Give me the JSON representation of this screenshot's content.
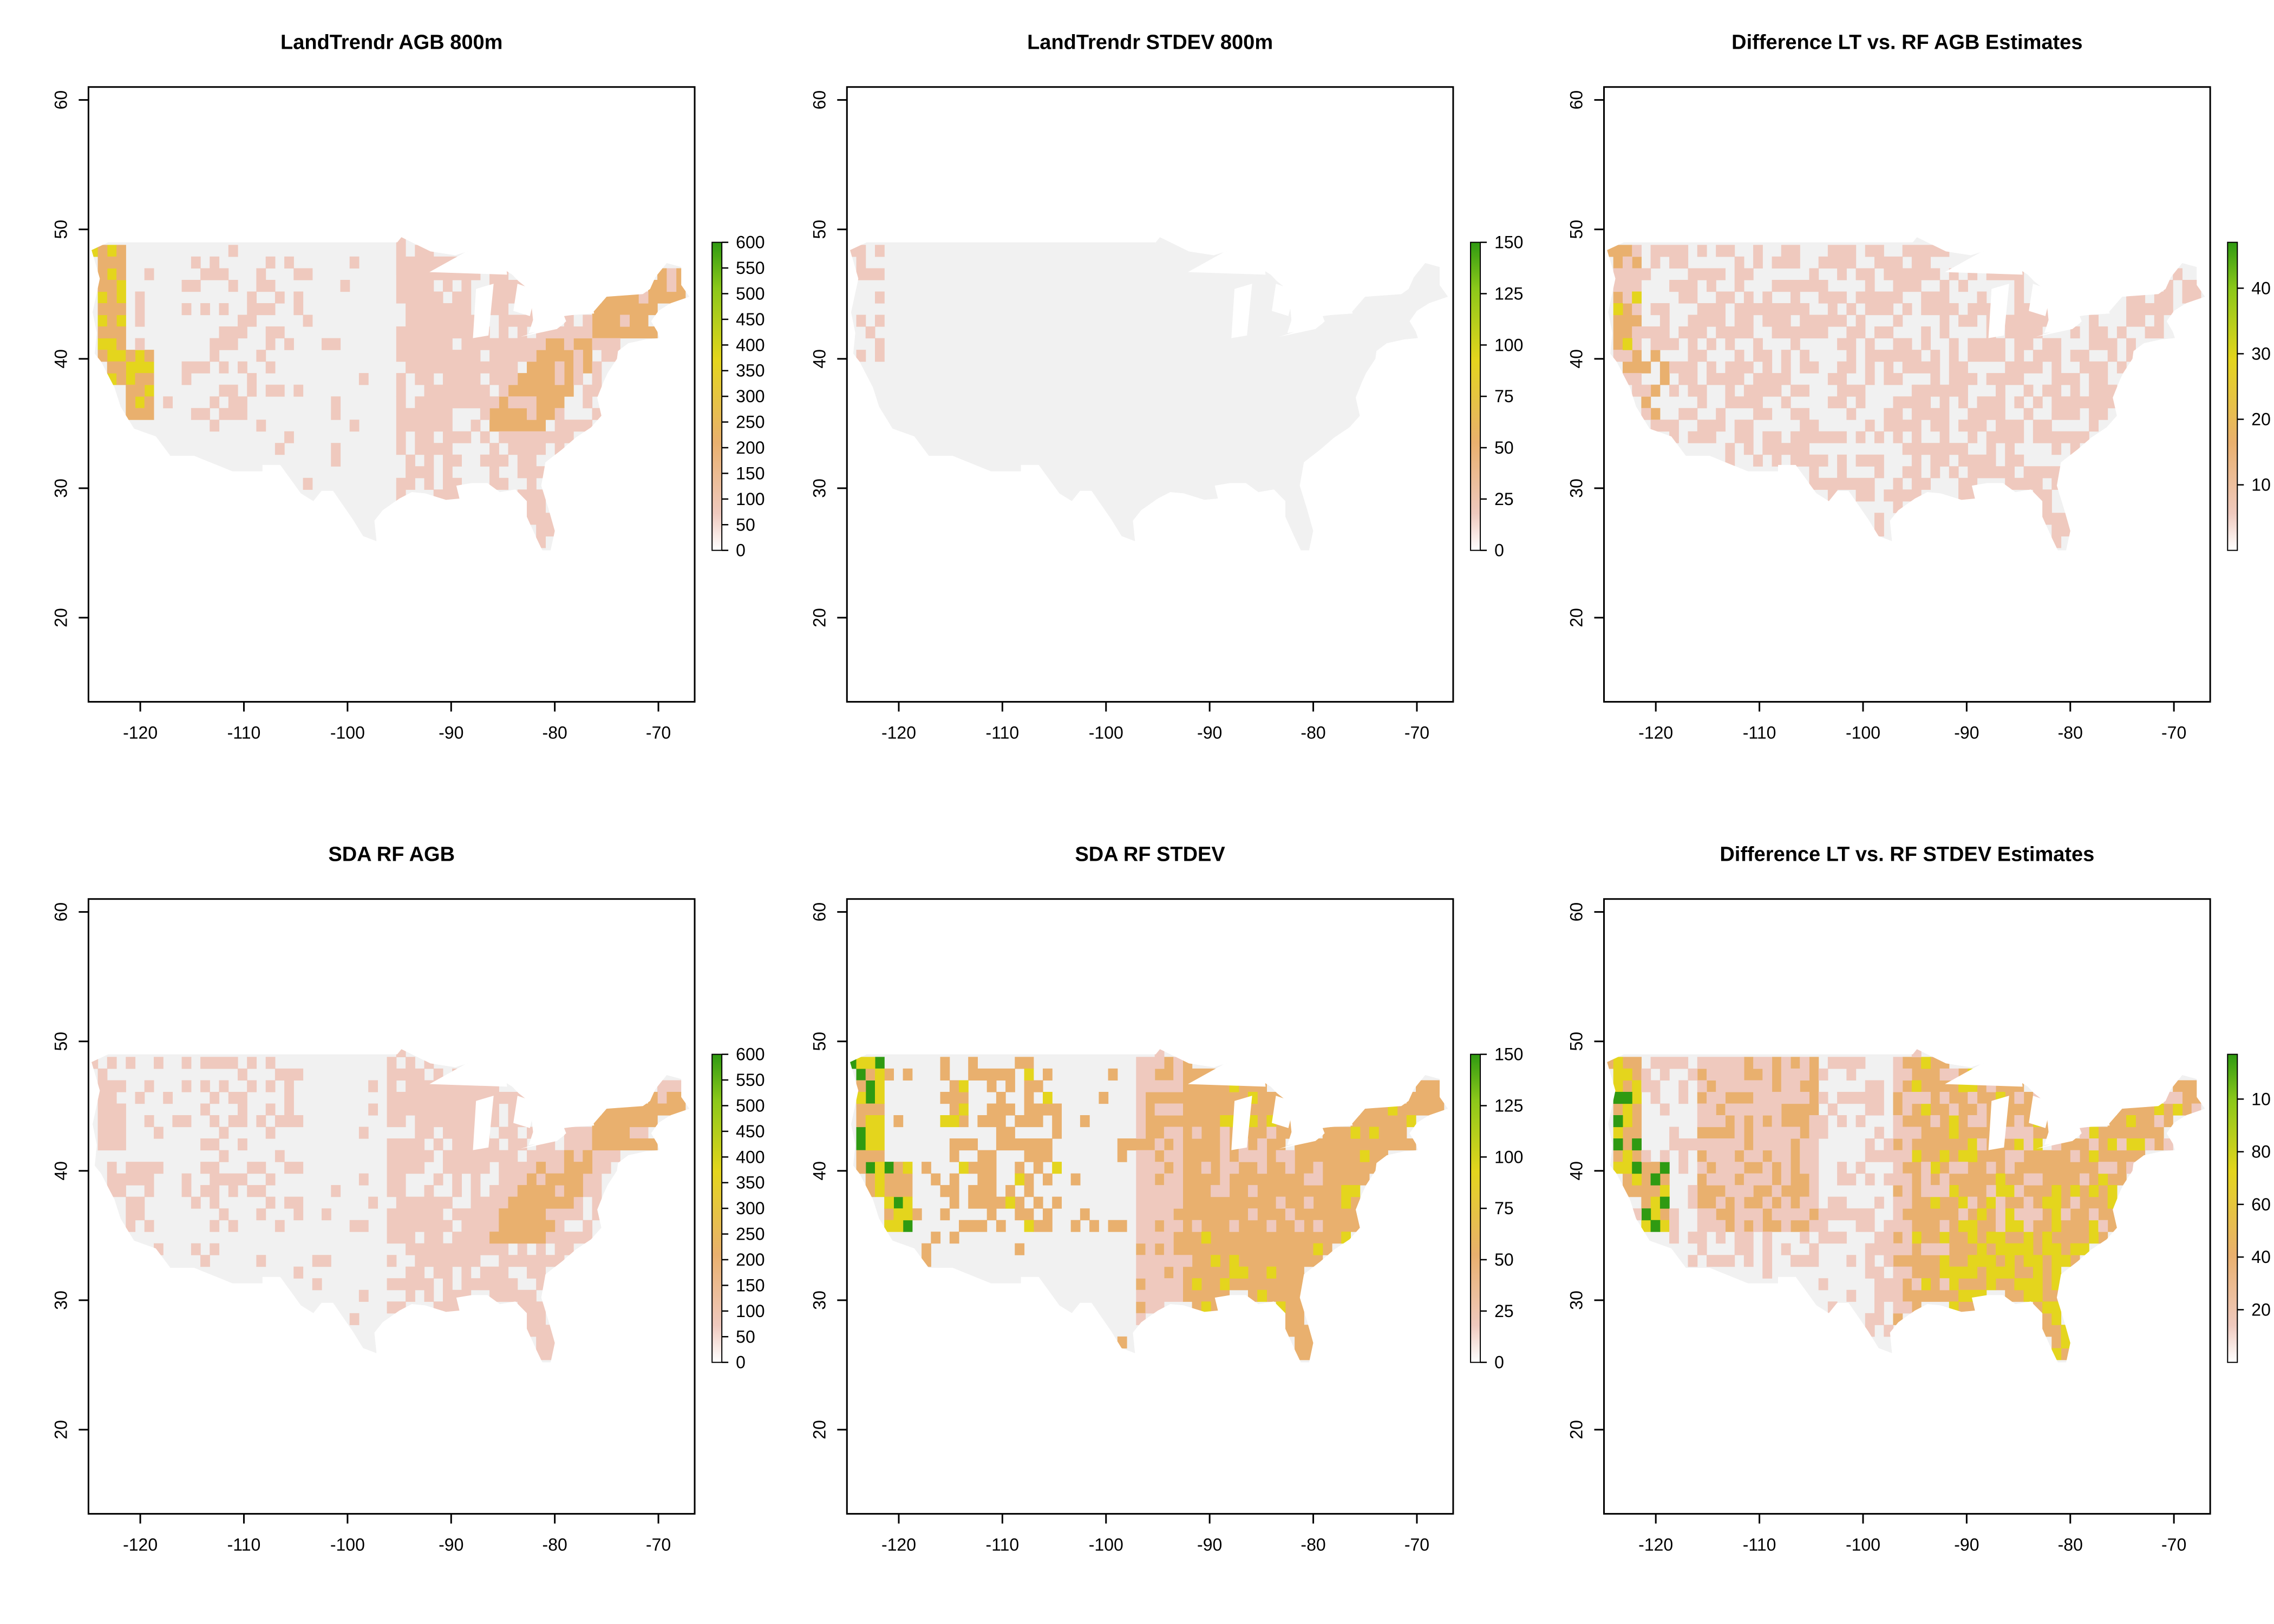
{
  "figure": {
    "panels": [
      {
        "title": "LandTrendr AGB 800m",
        "style": "agb_lt",
        "legend": {
          "ticks": [
            "0",
            "50",
            "100",
            "150",
            "200",
            "250",
            "300",
            "350",
            "400",
            "450",
            "500",
            "550",
            "600"
          ],
          "max": 600
        }
      },
      {
        "title": "LandTrendr STDEV 800m",
        "style": "std_lt",
        "legend": {
          "ticks": [
            "0",
            "25",
            "50",
            "75",
            "100",
            "125",
            "150"
          ],
          "max": 150
        }
      },
      {
        "title": "Difference LT vs. RF AGB Estimates",
        "style": "diff_agb",
        "legend": {
          "ticks": [
            "10",
            "20",
            "30",
            "40"
          ],
          "max": 47
        }
      },
      {
        "title": "SDA RF AGB",
        "style": "agb_rf",
        "legend": {
          "ticks": [
            "0",
            "50",
            "100",
            "150",
            "200",
            "250",
            "300",
            "350",
            "400",
            "450",
            "500",
            "550",
            "600"
          ],
          "max": 600
        }
      },
      {
        "title": "SDA RF STDEV",
        "style": "std_rf",
        "legend": {
          "ticks": [
            "0",
            "25",
            "50",
            "75",
            "100",
            "125",
            "150"
          ],
          "max": 150
        }
      },
      {
        "title": "Difference LT vs. RF STDEV Estimates",
        "style": "diff_std",
        "legend": {
          "ticks": [
            "20",
            "40",
            "60",
            "80",
            "10"
          ],
          "max": 117
        }
      }
    ],
    "axes": {
      "x_ticks": [
        "-120",
        "-110",
        "-100",
        "-90",
        "-80",
        "-70"
      ],
      "x_values": [
        -120,
        -110,
        -100,
        -90,
        -80,
        -70
      ],
      "y_ticks": [
        "20",
        "30",
        "40",
        "50",
        "60"
      ],
      "y_values": [
        20,
        30,
        40,
        50,
        60
      ],
      "xlim": [
        -125,
        -66.5
      ],
      "ylim": [
        13.5,
        61
      ]
    },
    "colors": {
      "empty": "#f1f1f1",
      "low": "#efc9be",
      "mid": "#e9b06e",
      "high": "#e4d51d",
      "peak": "#2f9a12"
    }
  }
}
